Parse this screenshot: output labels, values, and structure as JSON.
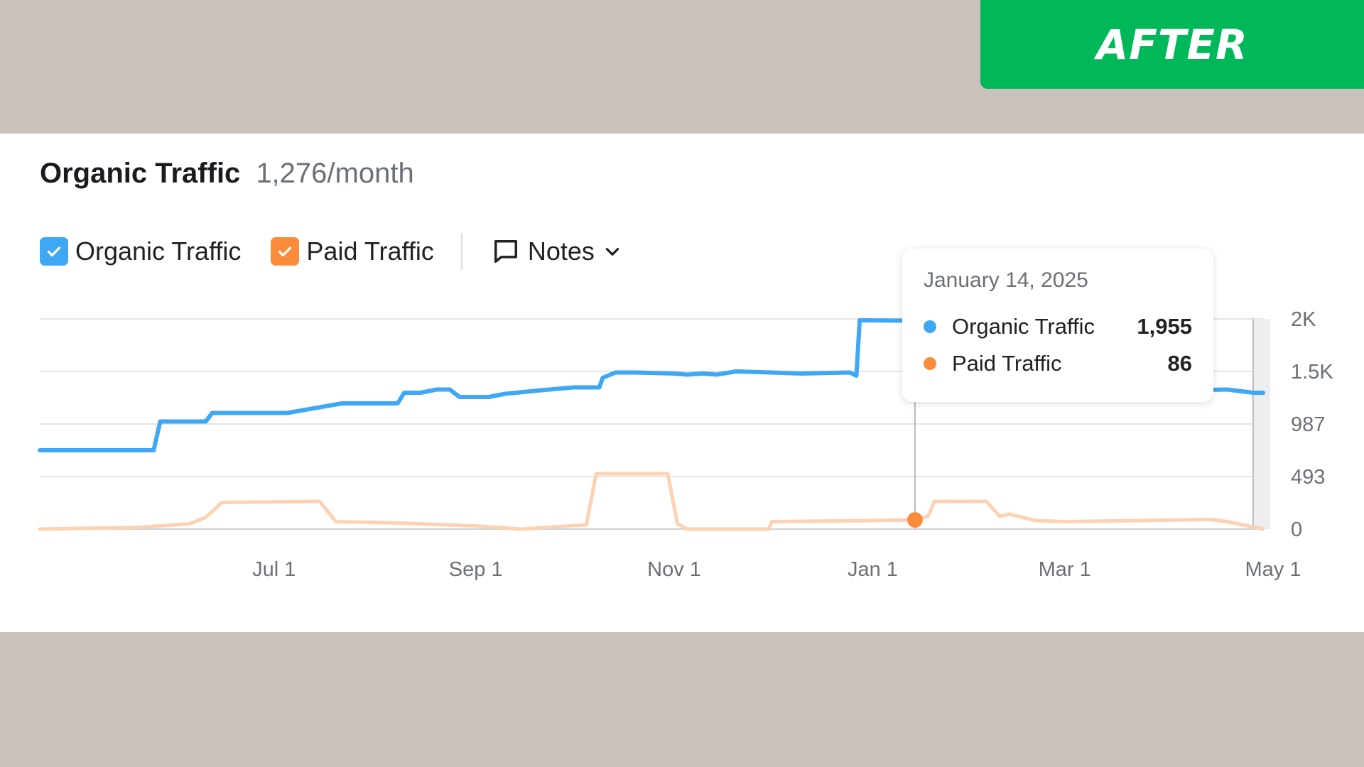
{
  "badge": {
    "label": "AFTER"
  },
  "header": {
    "title": "Organic Traffic",
    "subtitle": "1,276/month"
  },
  "legend": {
    "organic_label": "Organic Traffic",
    "paid_label": "Paid Traffic",
    "notes_label": "Notes"
  },
  "colors": {
    "organic": "#3fa8f4",
    "paid": "#fb8c3c",
    "paid_line": "#fdd2b4",
    "badge": "#00b85a"
  },
  "icons": {
    "checkbox": "check-icon",
    "notes": "speech-bubble-icon",
    "dropdown": "chevron-down-icon"
  },
  "tooltip": {
    "date": "January 14, 2025",
    "rows": [
      {
        "name": "Organic Traffic",
        "value": "1,955"
      },
      {
        "name": "Paid Traffic",
        "value": "86"
      }
    ]
  },
  "chart_data": {
    "type": "line",
    "x_ticks": [
      "Jul 1",
      "Sep 1",
      "Nov 1",
      "Jan 1",
      "Mar 1",
      "May 1"
    ],
    "y_ticks": [
      "2K",
      "1.5K",
      "987",
      "493",
      "0"
    ],
    "ylim": [
      0,
      1973
    ],
    "x_range": [
      "2024-04-20",
      "2025-05-01"
    ],
    "grid": true,
    "series": [
      {
        "name": "Organic Traffic",
        "x": [
          "2024-04-20",
          "2024-05-25",
          "2024-05-27",
          "2024-06-10",
          "2024-06-12",
          "2024-07-05",
          "2024-07-20",
          "2024-07-22",
          "2024-08-08",
          "2024-08-10",
          "2024-08-15",
          "2024-08-20",
          "2024-08-24",
          "2024-08-27",
          "2024-09-05",
          "2024-09-10",
          "2024-09-20",
          "2024-10-01",
          "2024-10-09",
          "2024-10-10",
          "2024-10-14",
          "2024-10-20",
          "2024-11-01",
          "2024-11-05",
          "2024-11-10",
          "2024-11-14",
          "2024-11-20",
          "2024-12-01",
          "2024-12-10",
          "2024-12-25",
          "2024-12-27",
          "2024-12-28",
          "2025-01-14",
          "2025-01-20",
          "2025-02-01",
          "2025-03-01",
          "2025-04-01",
          "2025-04-20",
          "2025-04-28",
          "2025-05-01"
        ],
        "y": [
          740,
          740,
          1010,
          1010,
          1090,
          1090,
          1170,
          1180,
          1180,
          1280,
          1280,
          1310,
          1310,
          1240,
          1240,
          1270,
          1300,
          1330,
          1330,
          1420,
          1470,
          1470,
          1460,
          1450,
          1460,
          1450,
          1480,
          1470,
          1460,
          1470,
          1440,
          1960,
          1955,
          1300,
          1290,
          1300,
          1300,
          1310,
          1280,
          1280
        ]
      },
      {
        "name": "Paid Traffic",
        "x": [
          "2024-04-20",
          "2024-05-20",
          "2024-06-05",
          "2024-06-10",
          "2024-06-15",
          "2024-07-15",
          "2024-07-20",
          "2024-08-05",
          "2024-09-01",
          "2024-09-15",
          "2024-10-05",
          "2024-10-08",
          "2024-10-30",
          "2024-11-02",
          "2024-11-05",
          "2024-11-30",
          "2024-12-01",
          "2024-12-31",
          "2025-01-14",
          "2025-01-18",
          "2025-01-20",
          "2025-02-05",
          "2025-02-09",
          "2025-02-12",
          "2025-02-20",
          "2025-03-01",
          "2025-04-15",
          "2025-04-20",
          "2025-05-01"
        ],
        "y": [
          0,
          15,
          50,
          110,
          250,
          260,
          70,
          60,
          30,
          0,
          40,
          520,
          520,
          50,
          0,
          0,
          70,
          80,
          86,
          120,
          260,
          260,
          120,
          140,
          80,
          70,
          90,
          70,
          0
        ]
      }
    ]
  }
}
